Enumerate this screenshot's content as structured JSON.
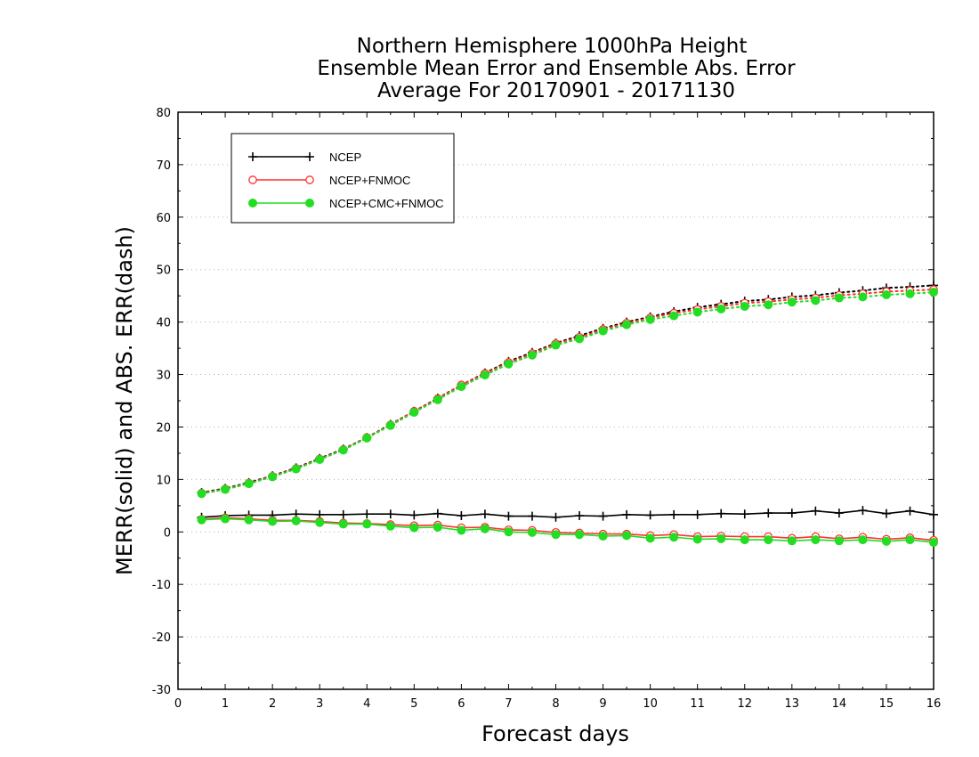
{
  "chart_data": {
    "type": "line",
    "title": [
      "Northern Hemisphere 1000hPa Height",
      "Ensemble Mean Error and Ensemble Abs. Error",
      "Average For 20170901 - 20171130"
    ],
    "xlabel": "Forecast days",
    "ylabel": "MERR(solid) and ABS. ERR(dash)",
    "xlim": [
      0,
      16
    ],
    "ylim": [
      -30,
      80
    ],
    "xticks": [
      "0",
      "1",
      "2",
      "3",
      "4",
      "5",
      "6",
      "7",
      "8",
      "9",
      "10",
      "11",
      "12",
      "13",
      "14",
      "15",
      "16"
    ],
    "yticks": [
      "-30",
      "-20",
      "-10",
      "0",
      "10",
      "20",
      "30",
      "40",
      "50",
      "60",
      "70",
      "80"
    ],
    "grid": true,
    "legend_position": "top-left",
    "x": [
      0.5,
      1,
      1.5,
      2,
      2.5,
      3,
      3.5,
      4,
      4.5,
      5,
      5.5,
      6,
      6.5,
      7,
      7.5,
      8,
      8.5,
      9,
      9.5,
      10,
      10.5,
      11,
      11.5,
      12,
      12.5,
      13,
      13.5,
      14,
      14.5,
      15,
      15.5,
      16
    ],
    "series": [
      {
        "name": "NCEP",
        "color": "#000000",
        "marker": "plus",
        "merr": [
          2.8,
          3.1,
          3.2,
          3.2,
          3.4,
          3.3,
          3.3,
          3.4,
          3.4,
          3.2,
          3.5,
          3.1,
          3.4,
          3.0,
          3.0,
          2.8,
          3.1,
          3.0,
          3.3,
          3.2,
          3.3,
          3.3,
          3.5,
          3.4,
          3.6,
          3.6,
          4.0,
          3.6,
          4.1,
          3.5,
          4.0,
          3.3
        ],
        "abs_err": [
          7.5,
          8.3,
          9.4,
          10.7,
          12.2,
          14.0,
          15.8,
          18.0,
          20.5,
          23.0,
          25.5,
          28.0,
          30.3,
          32.5,
          34.2,
          36.0,
          37.4,
          38.8,
          40.0,
          41.0,
          42.0,
          42.8,
          43.4,
          44.0,
          44.3,
          44.8,
          45.1,
          45.6,
          46.0,
          46.5,
          46.7,
          47.0
        ]
      },
      {
        "name": "NCEP+FNMOC",
        "color": "#ff3030",
        "marker": "open-circle",
        "merr": [
          2.4,
          2.7,
          2.5,
          2.2,
          2.2,
          2.0,
          1.7,
          1.6,
          1.4,
          1.2,
          1.3,
          0.8,
          0.9,
          0.4,
          0.3,
          -0.1,
          -0.2,
          -0.4,
          -0.4,
          -0.7,
          -0.5,
          -0.9,
          -0.8,
          -0.9,
          -0.9,
          -1.2,
          -0.9,
          -1.3,
          -1.0,
          -1.4,
          -1.1,
          -1.6
        ],
        "abs_err": [
          7.4,
          8.2,
          9.3,
          10.6,
          12.1,
          13.9,
          15.7,
          18.0,
          20.4,
          23.0,
          25.4,
          28.0,
          30.2,
          32.3,
          34.0,
          35.9,
          37.1,
          38.6,
          39.8,
          40.8,
          41.7,
          42.4,
          43.0,
          43.6,
          43.9,
          44.3,
          44.6,
          45.1,
          45.4,
          45.8,
          46.0,
          46.2
        ]
      },
      {
        "name": "NCEP+CMC+FNMOC",
        "color": "#22dd22",
        "marker": "filled-circle",
        "merr": [
          2.3,
          2.5,
          2.3,
          2.0,
          2.1,
          1.8,
          1.5,
          1.5,
          1.1,
          0.8,
          0.9,
          0.3,
          0.6,
          0.0,
          -0.1,
          -0.5,
          -0.5,
          -0.8,
          -0.7,
          -1.2,
          -1.0,
          -1.4,
          -1.3,
          -1.5,
          -1.5,
          -1.7,
          -1.5,
          -1.7,
          -1.5,
          -1.8,
          -1.5,
          -2.0
        ],
        "abs_err": [
          7.3,
          8.1,
          9.2,
          10.5,
          12.0,
          13.8,
          15.6,
          17.9,
          20.3,
          22.8,
          25.2,
          27.7,
          29.9,
          32.0,
          33.7,
          35.6,
          36.8,
          38.3,
          39.5,
          40.5,
          41.2,
          41.9,
          42.5,
          43.0,
          43.3,
          43.8,
          44.1,
          44.6,
          44.8,
          45.2,
          45.4,
          45.7
        ]
      }
    ]
  }
}
